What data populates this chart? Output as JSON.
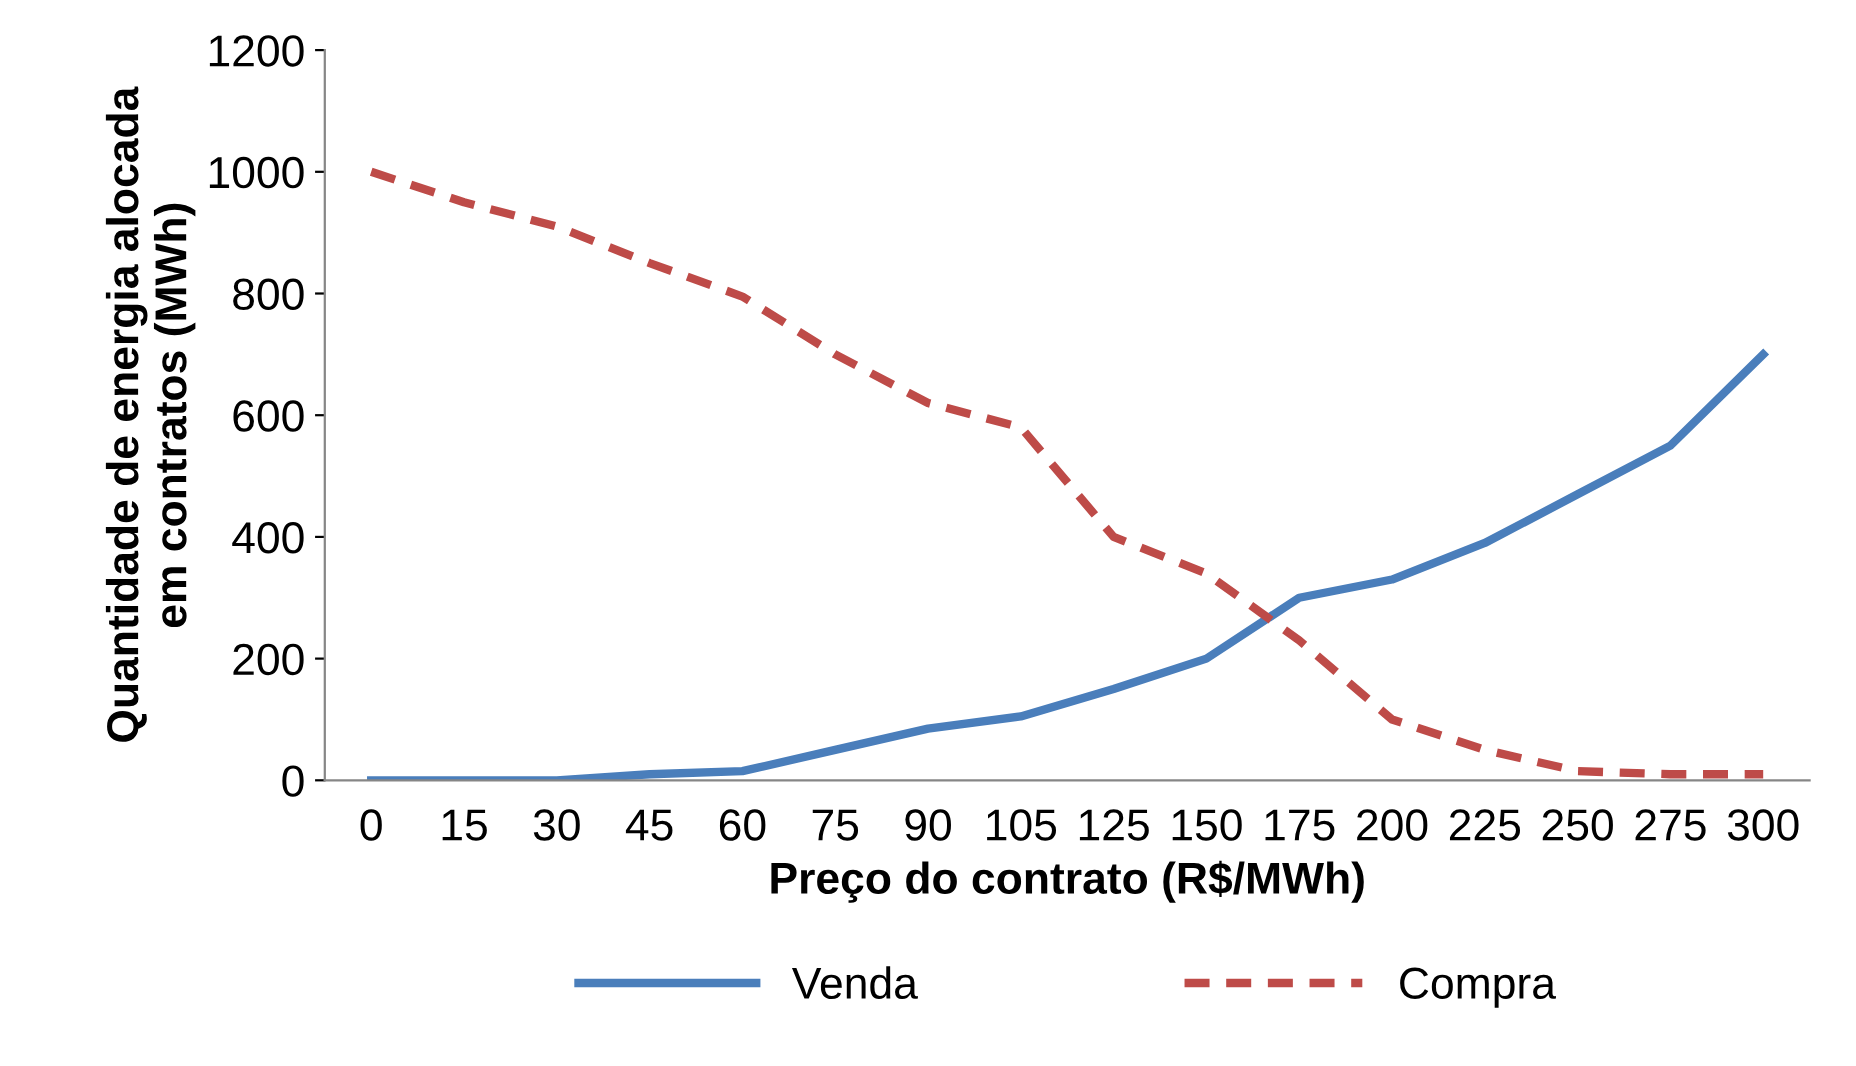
{
  "chart_data": {
    "type": "line",
    "xlabel": "Preço do contrato (R$/MWh)",
    "ylabel": "Quantidade de energia alocada\nem contratos (MWh)",
    "categories": [
      "0",
      "15",
      "30",
      "45",
      "60",
      "75",
      "90",
      "105",
      "125",
      "150",
      "175",
      "200",
      "225",
      "250",
      "275",
      "300"
    ],
    "series": [
      {
        "name": "Venda",
        "color": "#4a7ebb",
        "line_style": "solid",
        "values": [
          0,
          0,
          0,
          10,
          15,
          50,
          85,
          105,
          150,
          200,
          300,
          330,
          390,
          470,
          550,
          700
        ]
      },
      {
        "name": "Compra",
        "color": "#be4b48",
        "line_style": "dashed",
        "values": [
          1000,
          950,
          910,
          850,
          795,
          700,
          620,
          580,
          400,
          340,
          230,
          100,
          50,
          15,
          10,
          10
        ]
      }
    ],
    "ylim": [
      0,
      1200
    ],
    "yticks": [
      0,
      200,
      400,
      600,
      800,
      1000,
      1200
    ],
    "grid": false,
    "legend": "bottom",
    "marker": "none"
  }
}
